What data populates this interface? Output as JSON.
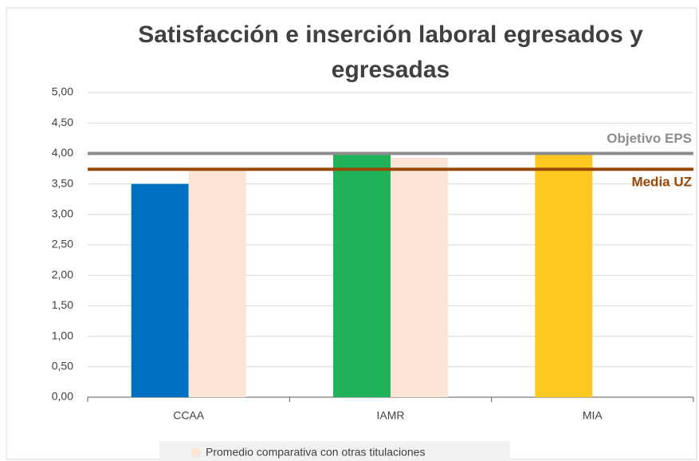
{
  "chart_data": {
    "type": "bar",
    "title": "Satisfacción e inserción laboral egresados y egresadas",
    "categories": [
      "CCAA",
      "IAMR",
      "MIA"
    ],
    "series": [
      {
        "colors": [
          "#0070c0",
          "#21b35a",
          "#ffc820"
        ],
        "values": [
          3.5,
          4.0,
          4.0
        ]
      },
      {
        "name": "Promedio comparativa con otras titulaciones",
        "color": "#fbe5d6",
        "values": [
          3.75,
          3.93,
          null
        ]
      }
    ],
    "reference_lines": [
      {
        "label": "Objetivo EPS",
        "value": 4.0,
        "color": "#8c8c8c"
      },
      {
        "label": "Media UZ",
        "value": 3.74,
        "color": "#984807"
      }
    ],
    "ylim": [
      0,
      5
    ],
    "yticks": [
      {
        "value": 0,
        "label": "0,00"
      },
      {
        "value": 0.5,
        "label": "0,50"
      },
      {
        "value": 1,
        "label": "1,00"
      },
      {
        "value": 1.5,
        "label": "1,50"
      },
      {
        "value": 2,
        "label": "2,00"
      },
      {
        "value": 2.5,
        "label": "2,50"
      },
      {
        "value": 3,
        "label": "3,00"
      },
      {
        "value": 3.5,
        "label": "3,50"
      },
      {
        "value": 4,
        "label": "4,00"
      },
      {
        "value": 4.5,
        "label": "4,50"
      },
      {
        "value": 5,
        "label": "5,00"
      }
    ],
    "grid": true,
    "legend": "bottom"
  }
}
